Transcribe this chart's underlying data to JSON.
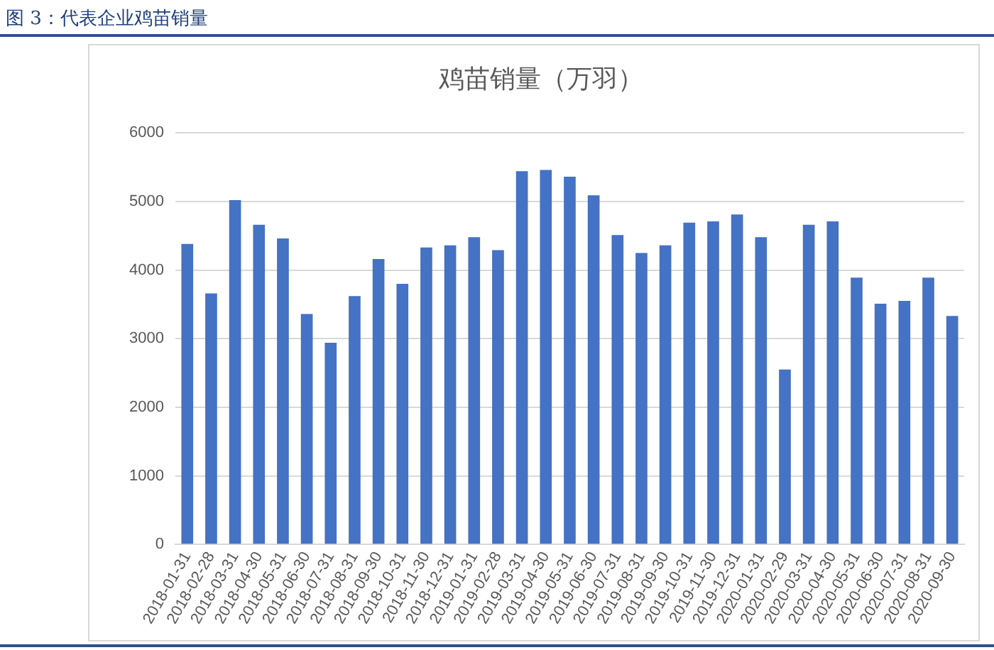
{
  "chart_data": {
    "type": "bar",
    "title": "鸡苗销量（万羽）",
    "annotations": [
      "图 3：代表企业鸡苗销量"
    ],
    "categories": [
      "2018-01-31",
      "2018-02-28",
      "2018-03-31",
      "2018-04-30",
      "2018-05-31",
      "2018-06-30",
      "2018-07-31",
      "2018-08-31",
      "2018-09-30",
      "2018-10-31",
      "2018-11-30",
      "2018-12-31",
      "2019-01-31",
      "2019-02-28",
      "2019-03-31",
      "2019-04-30",
      "2019-05-31",
      "2019-06-30",
      "2019-07-31",
      "2019-08-31",
      "2019-09-30",
      "2019-10-31",
      "2019-11-30",
      "2019-12-31",
      "2020-01-31",
      "2020-02-29",
      "2020-03-31",
      "2020-04-30",
      "2020-05-31",
      "2020-06-30",
      "2020-07-31",
      "2020-08-31",
      "2020-09-30"
    ],
    "values": [
      4380,
      3660,
      5020,
      4660,
      4460,
      3360,
      2940,
      3620,
      4160,
      3800,
      4330,
      4360,
      4480,
      4290,
      5440,
      5460,
      5360,
      5090,
      4510,
      4250,
      4360,
      4690,
      4710,
      4810,
      4480,
      2550,
      4660,
      4710,
      3890,
      3510,
      3550,
      3890,
      3330
    ],
    "color": "#4472c4",
    "ylim": [
      0,
      6000
    ],
    "yticks": [
      0,
      1000,
      2000,
      3000,
      4000,
      5000,
      6000
    ],
    "grid": "y",
    "legend": false
  }
}
